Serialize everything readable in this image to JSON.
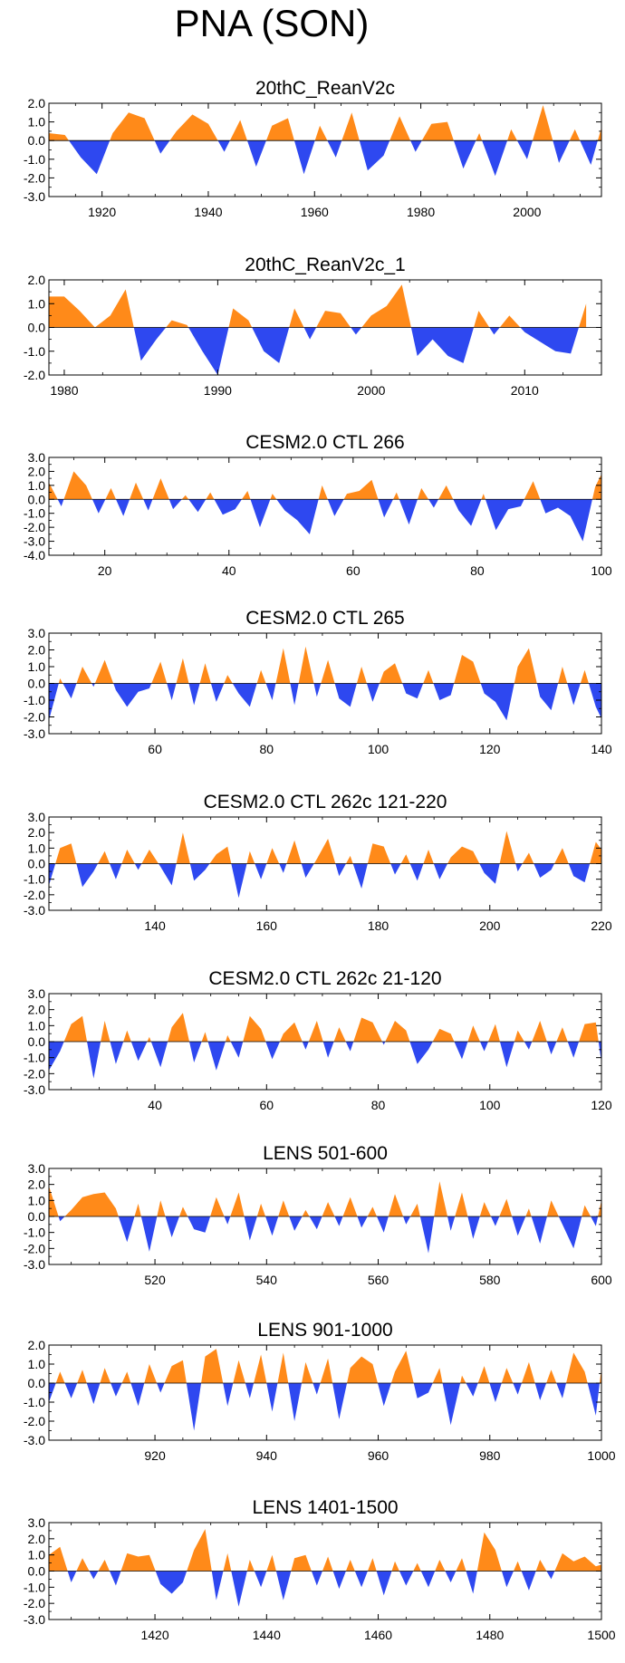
{
  "figure": {
    "title": "PNA (SON)"
  },
  "colors": {
    "positive": "#ff8a19",
    "negative": "#2e48f0",
    "axis": "#000000"
  },
  "chart_data": [
    {
      "type": "area",
      "title": "20thC_ReanV2c",
      "xlim": [
        1910,
        2014
      ],
      "ylim": [
        -3,
        2
      ],
      "yticks": [
        2.0,
        1.0,
        0.0,
        -1.0,
        -2.0,
        -3.0
      ],
      "xticks": [
        1920,
        1940,
        1960,
        1980,
        2000
      ],
      "x": [
        1910,
        1913,
        1916,
        1919,
        1922,
        1925,
        1928,
        1931,
        1934,
        1937,
        1940,
        1943,
        1946,
        1949,
        1952,
        1955,
        1958,
        1961,
        1964,
        1967,
        1970,
        1973,
        1976,
        1979,
        1982,
        1985,
        1988,
        1991,
        1994,
        1997,
        2000,
        2003,
        2006,
        2009,
        2012,
        2014
      ],
      "values": [
        0.4,
        0.3,
        -0.9,
        -1.8,
        0.4,
        1.5,
        1.2,
        -0.7,
        0.5,
        1.4,
        0.9,
        -0.6,
        1.1,
        -1.4,
        0.8,
        1.2,
        -1.8,
        0.8,
        -0.9,
        1.5,
        -1.6,
        -0.8,
        1.3,
        -0.6,
        0.9,
        1.0,
        -1.5,
        0.4,
        -1.9,
        0.6,
        -1.0,
        1.9,
        -1.2,
        0.6,
        -1.3,
        0.7
      ]
    },
    {
      "type": "area",
      "title": "20thC_ReanV2c_1",
      "xlim": [
        1979,
        2015
      ],
      "ylim": [
        -2,
        2
      ],
      "yticks": [
        2.0,
        1.0,
        0.0,
        -1.0,
        -2.0
      ],
      "xticks": [
        1980,
        1990,
        2000,
        2010
      ],
      "x": [
        1979,
        1980,
        1981,
        1982,
        1983,
        1984,
        1985,
        1986,
        1987,
        1988,
        1989,
        1990,
        1991,
        1992,
        1993,
        1994,
        1995,
        1996,
        1997,
        1998,
        1999,
        2000,
        2001,
        2002,
        2003,
        2004,
        2005,
        2006,
        2007,
        2008,
        2009,
        2010,
        2011,
        2012,
        2013,
        2014
      ],
      "values": [
        1.3,
        1.3,
        0.7,
        0.0,
        0.5,
        1.6,
        -1.4,
        -0.5,
        0.3,
        0.1,
        -1.0,
        -2.0,
        0.8,
        0.3,
        -1.0,
        -1.5,
        0.8,
        -0.5,
        0.7,
        0.6,
        -0.3,
        0.5,
        0.9,
        1.8,
        -1.2,
        -0.5,
        -1.2,
        -1.5,
        0.7,
        -0.3,
        0.5,
        -0.2,
        -0.6,
        -1.0,
        -1.1,
        1.0
      ]
    },
    {
      "type": "area",
      "title": "CESM2.0 CTL 266",
      "xlim": [
        11,
        100
      ],
      "ylim": [
        -4,
        3
      ],
      "yticks": [
        3.0,
        2.0,
        1.0,
        0.0,
        -1.0,
        -2.0,
        -3.0,
        -4.0
      ],
      "xticks": [
        20,
        40,
        60,
        80,
        100
      ],
      "x": [
        11,
        13,
        15,
        17,
        19,
        21,
        23,
        25,
        27,
        29,
        31,
        33,
        35,
        37,
        39,
        41,
        43,
        45,
        47,
        49,
        51,
        53,
        55,
        57,
        59,
        61,
        63,
        65,
        67,
        69,
        71,
        73,
        75,
        77,
        79,
        81,
        83,
        85,
        87,
        89,
        91,
        93,
        95,
        97,
        99,
        100
      ],
      "values": [
        1.2,
        -0.5,
        2.0,
        1.0,
        -1.0,
        0.8,
        -1.2,
        1.2,
        -0.8,
        1.5,
        -0.7,
        0.3,
        -0.9,
        0.5,
        -1.1,
        -0.7,
        0.6,
        -2.0,
        0.4,
        -0.8,
        -1.5,
        -2.5,
        1.0,
        -1.2,
        0.4,
        0.6,
        1.4,
        -1.3,
        0.5,
        -1.8,
        0.8,
        -0.6,
        1.0,
        -0.8,
        -1.9,
        0.4,
        -2.2,
        -0.7,
        -0.5,
        1.3,
        -1.0,
        -0.6,
        -1.2,
        -3.0,
        0.9,
        1.8
      ]
    },
    {
      "type": "area",
      "title": "CESM2.0 CTL 265",
      "xlim": [
        41,
        140
      ],
      "ylim": [
        -3,
        3
      ],
      "yticks": [
        3.0,
        2.0,
        1.0,
        0.0,
        -1.0,
        -2.0,
        -3.0
      ],
      "xticks": [
        60,
        80,
        100,
        120,
        140
      ],
      "x": [
        41,
        43,
        45,
        47,
        49,
        51,
        53,
        55,
        57,
        59,
        61,
        63,
        65,
        67,
        69,
        71,
        73,
        75,
        77,
        79,
        81,
        83,
        85,
        87,
        89,
        91,
        93,
        95,
        97,
        99,
        101,
        103,
        105,
        107,
        109,
        111,
        113,
        115,
        117,
        119,
        121,
        123,
        125,
        127,
        129,
        131,
        133,
        135,
        137,
        139,
        140
      ],
      "values": [
        -2.2,
        0.3,
        -0.9,
        1.0,
        -0.2,
        1.4,
        -0.4,
        -1.4,
        -0.5,
        -0.3,
        1.3,
        -1.0,
        1.5,
        -1.3,
        1.2,
        -1.1,
        0.5,
        -0.6,
        -1.4,
        0.8,
        -1.0,
        2.1,
        -1.3,
        2.2,
        -0.8,
        1.4,
        -0.9,
        -1.4,
        1.0,
        -1.1,
        0.7,
        1.2,
        -0.6,
        -0.9,
        0.8,
        -1.0,
        -0.7,
        1.7,
        1.3,
        -0.6,
        -1.1,
        -2.2,
        1.0,
        2.1,
        -0.8,
        -1.6,
        1.0,
        -1.3,
        0.8,
        -1.4,
        -2.1
      ]
    },
    {
      "type": "area",
      "title": "CESM2.0 CTL 262c 121-220",
      "xlim": [
        121,
        220
      ],
      "ylim": [
        -3,
        3
      ],
      "yticks": [
        3.0,
        2.0,
        1.0,
        0.0,
        -1.0,
        -2.0,
        -3.0
      ],
      "xticks": [
        140,
        160,
        180,
        200,
        220
      ],
      "x": [
        121,
        123,
        125,
        127,
        129,
        131,
        133,
        135,
        137,
        139,
        141,
        143,
        145,
        147,
        149,
        151,
        153,
        155,
        157,
        159,
        161,
        163,
        165,
        167,
        169,
        171,
        173,
        175,
        177,
        179,
        181,
        183,
        185,
        187,
        189,
        191,
        193,
        195,
        197,
        199,
        201,
        203,
        205,
        207,
        209,
        211,
        213,
        215,
        217,
        219,
        220
      ],
      "values": [
        -1.4,
        1.0,
        1.3,
        -1.5,
        -0.5,
        0.8,
        -1.0,
        0.9,
        -0.4,
        0.9,
        -0.2,
        -1.4,
        2.0,
        -1.1,
        -0.4,
        0.6,
        1.1,
        -2.2,
        0.8,
        -1.0,
        1.0,
        -0.6,
        1.5,
        -0.9,
        0.3,
        1.6,
        -0.8,
        0.5,
        -1.6,
        1.3,
        1.1,
        -0.7,
        0.6,
        -1.1,
        0.9,
        -1.0,
        0.4,
        1.1,
        0.8,
        -0.6,
        -1.3,
        2.1,
        -0.5,
        0.7,
        -0.9,
        -0.4,
        1.0,
        -0.8,
        -1.2,
        1.4,
        0.9
      ]
    },
    {
      "type": "area",
      "title": "CESM2.0 CTL 262c 21-120",
      "xlim": [
        21,
        120
      ],
      "ylim": [
        -3,
        3
      ],
      "yticks": [
        3.0,
        2.0,
        1.0,
        0.0,
        -1.0,
        -2.0,
        -3.0
      ],
      "xticks": [
        40,
        60,
        80,
        100,
        120
      ],
      "x": [
        21,
        23,
        25,
        27,
        29,
        31,
        33,
        35,
        37,
        39,
        41,
        43,
        45,
        47,
        49,
        51,
        53,
        55,
        57,
        59,
        61,
        63,
        65,
        67,
        69,
        71,
        73,
        75,
        77,
        79,
        81,
        83,
        85,
        87,
        89,
        91,
        93,
        95,
        97,
        99,
        101,
        103,
        105,
        107,
        109,
        111,
        113,
        115,
        117,
        119,
        120
      ],
      "values": [
        -1.8,
        -0.6,
        1.1,
        1.6,
        -2.3,
        1.3,
        -1.4,
        0.7,
        -1.2,
        0.3,
        -1.6,
        0.9,
        1.8,
        -1.3,
        0.6,
        -1.8,
        0.4,
        -1.0,
        1.6,
        0.8,
        -1.1,
        0.5,
        1.2,
        -0.5,
        1.3,
        -1.0,
        0.9,
        -0.6,
        1.5,
        1.2,
        -0.2,
        1.3,
        0.7,
        -1.4,
        -0.5,
        0.8,
        0.5,
        -1.1,
        1.0,
        -0.6,
        1.1,
        -1.6,
        0.7,
        -0.5,
        1.3,
        -0.8,
        0.9,
        -1.0,
        1.1,
        1.2,
        -1.3
      ]
    },
    {
      "type": "area",
      "title": "LENS 501-600",
      "xlim": [
        501,
        600
      ],
      "ylim": [
        -3,
        3
      ],
      "yticks": [
        3.0,
        2.0,
        1.0,
        0.0,
        -1.0,
        -2.0,
        -3.0
      ],
      "xticks": [
        520,
        540,
        560,
        580,
        600
      ],
      "x": [
        501,
        503,
        505,
        507,
        509,
        511,
        513,
        515,
        517,
        519,
        521,
        523,
        525,
        527,
        529,
        531,
        533,
        535,
        537,
        539,
        541,
        543,
        545,
        547,
        549,
        551,
        553,
        555,
        557,
        559,
        561,
        563,
        565,
        567,
        569,
        571,
        573,
        575,
        577,
        579,
        581,
        583,
        585,
        587,
        589,
        591,
        593,
        595,
        597,
        599,
        600
      ],
      "values": [
        1.9,
        -0.3,
        0.4,
        1.2,
        1.4,
        1.5,
        0.5,
        -1.6,
        0.8,
        -2.2,
        1.0,
        -1.3,
        0.6,
        -0.8,
        -1.0,
        1.2,
        -0.5,
        1.5,
        -1.5,
        0.8,
        -1.2,
        1.0,
        -0.9,
        0.4,
        -0.8,
        0.9,
        -0.6,
        1.2,
        -0.7,
        0.6,
        -1.0,
        1.4,
        -0.5,
        0.8,
        -2.3,
        2.2,
        -0.9,
        1.5,
        -1.4,
        0.9,
        -0.6,
        1.1,
        -1.2,
        0.5,
        -1.7,
        1.0,
        -0.5,
        -2.0,
        0.7,
        -0.6,
        1.0
      ]
    },
    {
      "type": "area",
      "title": "LENS 901-1000",
      "xlim": [
        901,
        1000
      ],
      "ylim": [
        -3,
        2
      ],
      "yticks": [
        2.0,
        1.0,
        0.0,
        -1.0,
        -2.0,
        -3.0
      ],
      "xticks": [
        920,
        940,
        960,
        980,
        1000
      ],
      "x": [
        901,
        903,
        905,
        907,
        909,
        911,
        913,
        915,
        917,
        919,
        921,
        923,
        925,
        927,
        929,
        931,
        933,
        935,
        937,
        939,
        941,
        943,
        945,
        947,
        949,
        951,
        953,
        955,
        957,
        959,
        961,
        963,
        965,
        967,
        969,
        971,
        973,
        975,
        977,
        979,
        981,
        983,
        985,
        987,
        989,
        991,
        993,
        995,
        997,
        999,
        1000
      ],
      "values": [
        -1.0,
        0.6,
        -0.8,
        0.7,
        -1.1,
        0.8,
        -0.7,
        0.6,
        -1.2,
        1.0,
        -0.5,
        0.9,
        1.2,
        -2.5,
        1.4,
        1.8,
        -1.2,
        1.2,
        -0.8,
        1.5,
        -1.5,
        1.6,
        -2.0,
        1.1,
        -0.6,
        1.3,
        -1.9,
        0.8,
        1.4,
        1.0,
        -1.2,
        0.6,
        1.7,
        -0.8,
        -0.5,
        0.8,
        -2.2,
        0.4,
        -0.7,
        0.9,
        -1.0,
        0.8,
        -0.6,
        1.1,
        -0.9,
        0.7,
        -0.8,
        1.6,
        0.6,
        -1.7,
        0.8
      ]
    },
    {
      "type": "area",
      "title": "LENS 1401-1500",
      "xlim": [
        1401,
        1500
      ],
      "ylim": [
        -3,
        3
      ],
      "yticks": [
        3.0,
        2.0,
        1.0,
        0.0,
        -1.0,
        -2.0,
        -3.0
      ],
      "xticks": [
        1420,
        1440,
        1460,
        1480,
        1500
      ],
      "x": [
        1401,
        1403,
        1405,
        1407,
        1409,
        1411,
        1413,
        1415,
        1417,
        1419,
        1421,
        1423,
        1425,
        1427,
        1429,
        1431,
        1433,
        1435,
        1437,
        1439,
        1441,
        1443,
        1445,
        1447,
        1449,
        1451,
        1453,
        1455,
        1457,
        1459,
        1461,
        1463,
        1465,
        1467,
        1469,
        1471,
        1473,
        1475,
        1477,
        1479,
        1481,
        1483,
        1485,
        1487,
        1489,
        1491,
        1493,
        1495,
        1497,
        1499,
        1500
      ],
      "values": [
        1.0,
        1.5,
        -0.7,
        0.8,
        -0.5,
        0.7,
        -0.9,
        1.1,
        0.9,
        1.0,
        -0.8,
        -1.4,
        -0.7,
        1.3,
        2.6,
        -1.8,
        1.1,
        -2.2,
        0.7,
        -1.0,
        1.0,
        -1.8,
        0.8,
        1.0,
        -0.9,
        0.9,
        -1.1,
        0.7,
        -1.0,
        0.8,
        -1.5,
        0.6,
        -0.9,
        0.5,
        -1.0,
        0.7,
        -0.7,
        0.8,
        -1.4,
        2.4,
        1.3,
        -1.0,
        0.6,
        -1.2,
        0.7,
        -0.5,
        1.1,
        0.6,
        0.9,
        0.3,
        0.4
      ]
    }
  ]
}
